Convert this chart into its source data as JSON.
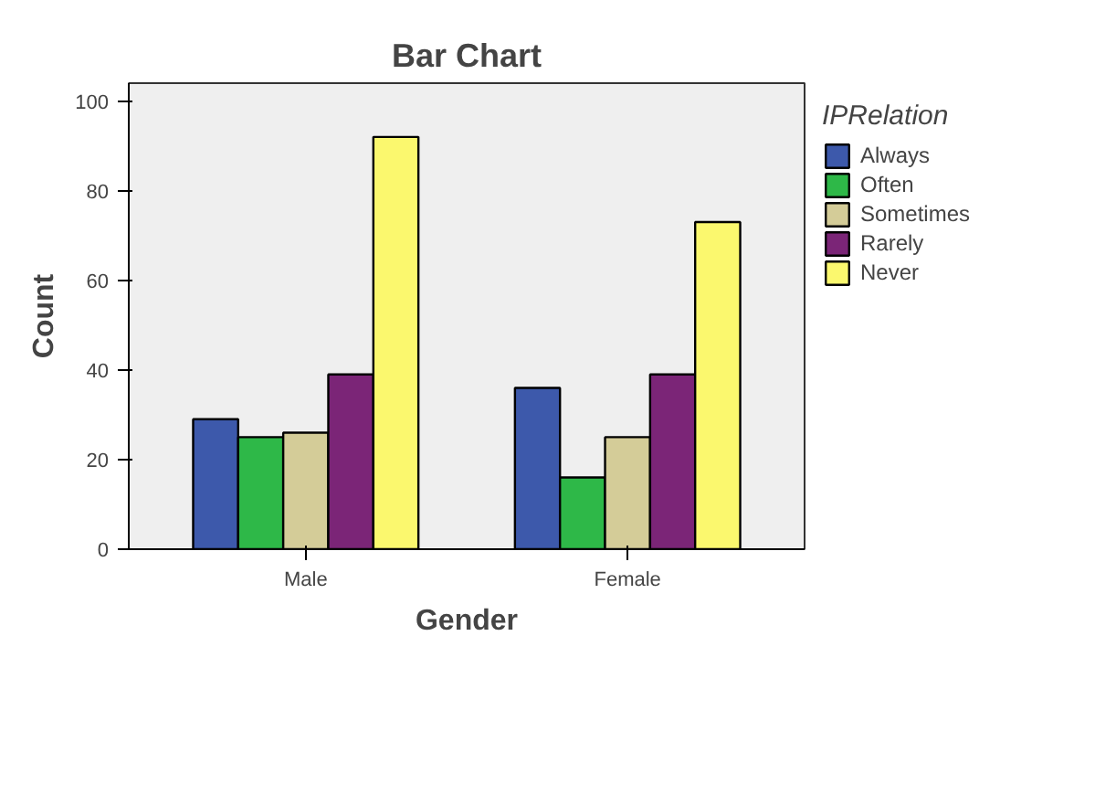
{
  "chart_data": {
    "type": "bar",
    "title": "Bar Chart",
    "xlabel": "Gender",
    "ylabel": "Count",
    "legend_title": "IPRelation",
    "categories": [
      "Male",
      "Female"
    ],
    "series": [
      {
        "name": "Always",
        "color": "#3d59ab",
        "values": [
          29,
          36
        ]
      },
      {
        "name": "Often",
        "color": "#2eb848",
        "values": [
          25,
          16
        ]
      },
      {
        "name": "Sometimes",
        "color": "#d4cc98",
        "values": [
          26,
          25
        ]
      },
      {
        "name": "Rarely",
        "color": "#7b2577",
        "values": [
          39,
          39
        ]
      },
      {
        "name": "Never",
        "color": "#fbf86e",
        "values": [
          92,
          73
        ]
      }
    ],
    "ylim": [
      0,
      104
    ],
    "yticks": [
      0,
      20,
      40,
      60,
      80,
      100
    ],
    "legend": "top right"
  }
}
